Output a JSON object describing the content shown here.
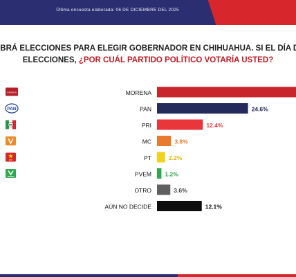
{
  "header": {
    "subtitle": "Última encuesta elaborada: 06 DE DICIEMBRE DEL 2025"
  },
  "question": {
    "line1": "ABRÁ ELECCIONES PARA ELEGIR GOBERNADOR EN CHIHUAHUA. SI EL DÍA D",
    "line2_plain": "ELECCIONES, ",
    "line2_emphasis": "¿POR CUÁL PARTIDO POLÍTICO VOTARÍA USTED?"
  },
  "colors": {
    "header_blue": "#2b2f72",
    "header_red": "#d7262c",
    "emphasis_red": "#c01a22"
  },
  "chart_data": {
    "type": "bar",
    "orientation": "horizontal",
    "categories": [
      "MORENA",
      "PAN",
      "PRI",
      "MC",
      "PT",
      "PVEM",
      "OTRO",
      "AÚN NO DECIDE"
    ],
    "values": [
      null,
      24.6,
      12.4,
      3.8,
      2.2,
      1.2,
      3.6,
      12.1
    ],
    "value_labels": [
      "",
      "24.6%",
      "12.4%",
      "3.8%",
      "2.2%",
      "1.2%",
      "3.6%",
      "12.1%"
    ],
    "colors": [
      "#c9252c",
      "#232a5c",
      "#e8363a",
      "#e87b2e",
      "#f2d21a",
      "#2fa84f",
      "#5f5f5f",
      "#0d0d0d"
    ],
    "label_colors": [
      "#c9252c",
      "#232a5c",
      "#e8363a",
      "#e87b2e",
      "#e0b800",
      "#2fa84f",
      "#444444",
      "#111111"
    ],
    "logos": [
      "morena-logo",
      "pan-logo",
      "pri-logo",
      "mc-logo",
      "pt-logo",
      "pvem-logo",
      "",
      ""
    ],
    "logo_texts": [
      "morena",
      "PAN",
      "PRI",
      "",
      "PT",
      "VERDE",
      "",
      ""
    ],
    "title": "",
    "xlabel": "",
    "ylabel": "",
    "grid": false,
    "legend": "none"
  }
}
